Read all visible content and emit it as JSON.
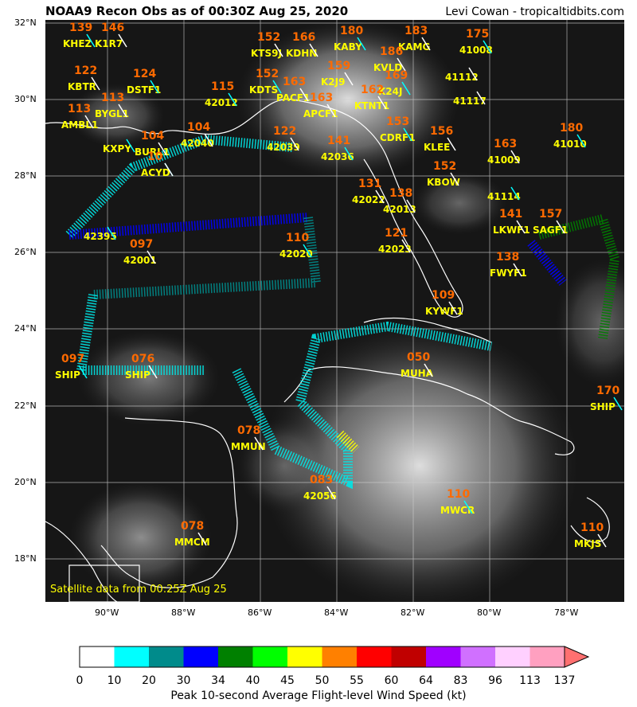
{
  "title": "NOAA9 Recon Obs as of 00:30Z Aug 25, 2020",
  "credit": "Levi Cowan - tropicaltidbits.com",
  "satellite_note": "Satellite data from 00:25Z Aug 25",
  "lat_ticks": [
    "32°N",
    "30°N",
    "28°N",
    "26°N",
    "24°N",
    "22°N",
    "20°N",
    "18°N"
  ],
  "lon_ticks": [
    "90°W",
    "88°W",
    "86°W",
    "84°W",
    "82°W",
    "80°W",
    "78°W"
  ],
  "colorbar": {
    "label": "Peak 10-second Average Flight-level Wind Speed (kt)",
    "ticks": [
      "0",
      "10",
      "20",
      "30",
      "34",
      "40",
      "45",
      "50",
      "55",
      "60",
      "64",
      "83",
      "96",
      "113",
      "137"
    ],
    "colors": [
      "#ffffff",
      "#00ffff",
      "#008b8b",
      "#0000ff",
      "#008000",
      "#00ff00",
      "#ffff00",
      "#ff8000",
      "#ff0000",
      "#c00000",
      "#a000ff",
      "#d070ff",
      "#ffd0ff",
      "#ffa0c0"
    ],
    "extend_color": "#ff7070"
  },
  "stations": [
    {
      "id": "KHEZ",
      "wind": "139"
    },
    {
      "id": "K1R7",
      "wind": "146"
    },
    {
      "id": "KBTR",
      "wind": "122"
    },
    {
      "id": "DSTF1",
      "wind": "124"
    },
    {
      "id": "BYGL1",
      "wind": "113"
    },
    {
      "id": "AMBL1",
      "wind": "113"
    },
    {
      "id": "KXPY",
      "wind": ""
    },
    {
      "id": "BURL1",
      "wind": "104"
    },
    {
      "id": "42040",
      "wind": "104"
    },
    {
      "id": "42012",
      "wind": "115"
    },
    {
      "id": "KTS9J",
      "wind": "152"
    },
    {
      "id": "KDHN",
      "wind": "166"
    },
    {
      "id": "KDTS",
      "wind": "152"
    },
    {
      "id": "PACF1",
      "wind": "163"
    },
    {
      "id": "K2J9",
      "wind": "159"
    },
    {
      "id": "KABY",
      "wind": "180"
    },
    {
      "id": "KAMG",
      "wind": "183"
    },
    {
      "id": "KVLD",
      "wind": "186"
    },
    {
      "id": "K24J",
      "wind": "169"
    },
    {
      "id": "APCF1",
      "wind": "163"
    },
    {
      "id": "KTNT1",
      "wind": "162"
    },
    {
      "id": "41008",
      "wind": "175"
    },
    {
      "id": "41112",
      "wind": ""
    },
    {
      "id": "41117",
      "wind": ""
    },
    {
      "id": "CDRF1",
      "wind": "153"
    },
    {
      "id": "KLEE",
      "wind": "156"
    },
    {
      "id": "42039",
      "wind": "122"
    },
    {
      "id": "42036",
      "wind": "141"
    },
    {
      "id": "KBOW",
      "wind": "152"
    },
    {
      "id": "41009",
      "wind": "163"
    },
    {
      "id": "41010",
      "wind": "180"
    },
    {
      "id": "42022",
      "wind": "131"
    },
    {
      "id": "42013",
      "wind": "138"
    },
    {
      "id": "41114",
      "wind": ""
    },
    {
      "id": "LKWF1",
      "wind": "141"
    },
    {
      "id": "SAGF1",
      "wind": "157"
    },
    {
      "id": "42395",
      "wind": ""
    },
    {
      "id": "42001",
      "wind": "097"
    },
    {
      "id": "42023",
      "wind": "121"
    },
    {
      "id": "42020",
      "wind": "110"
    },
    {
      "id": "FWYF1",
      "wind": "138"
    },
    {
      "id": "KYWF1",
      "wind": "109"
    },
    {
      "id": "SHIP",
      "wind": "097"
    },
    {
      "id": "SHIP",
      "wind": "076"
    },
    {
      "id": "MUHA",
      "wind": "050"
    },
    {
      "id": "SHIP",
      "wind": "170"
    },
    {
      "id": "MMUN",
      "wind": "078"
    },
    {
      "id": "42056",
      "wind": "083"
    },
    {
      "id": "MWCR",
      "wind": "110"
    },
    {
      "id": "MMCM",
      "wind": "078"
    },
    {
      "id": "MKJS",
      "wind": "110"
    },
    {
      "id": "",
      "wind": "10"
    },
    {
      "id": "ACYD",
      "wind": ""
    }
  ]
}
